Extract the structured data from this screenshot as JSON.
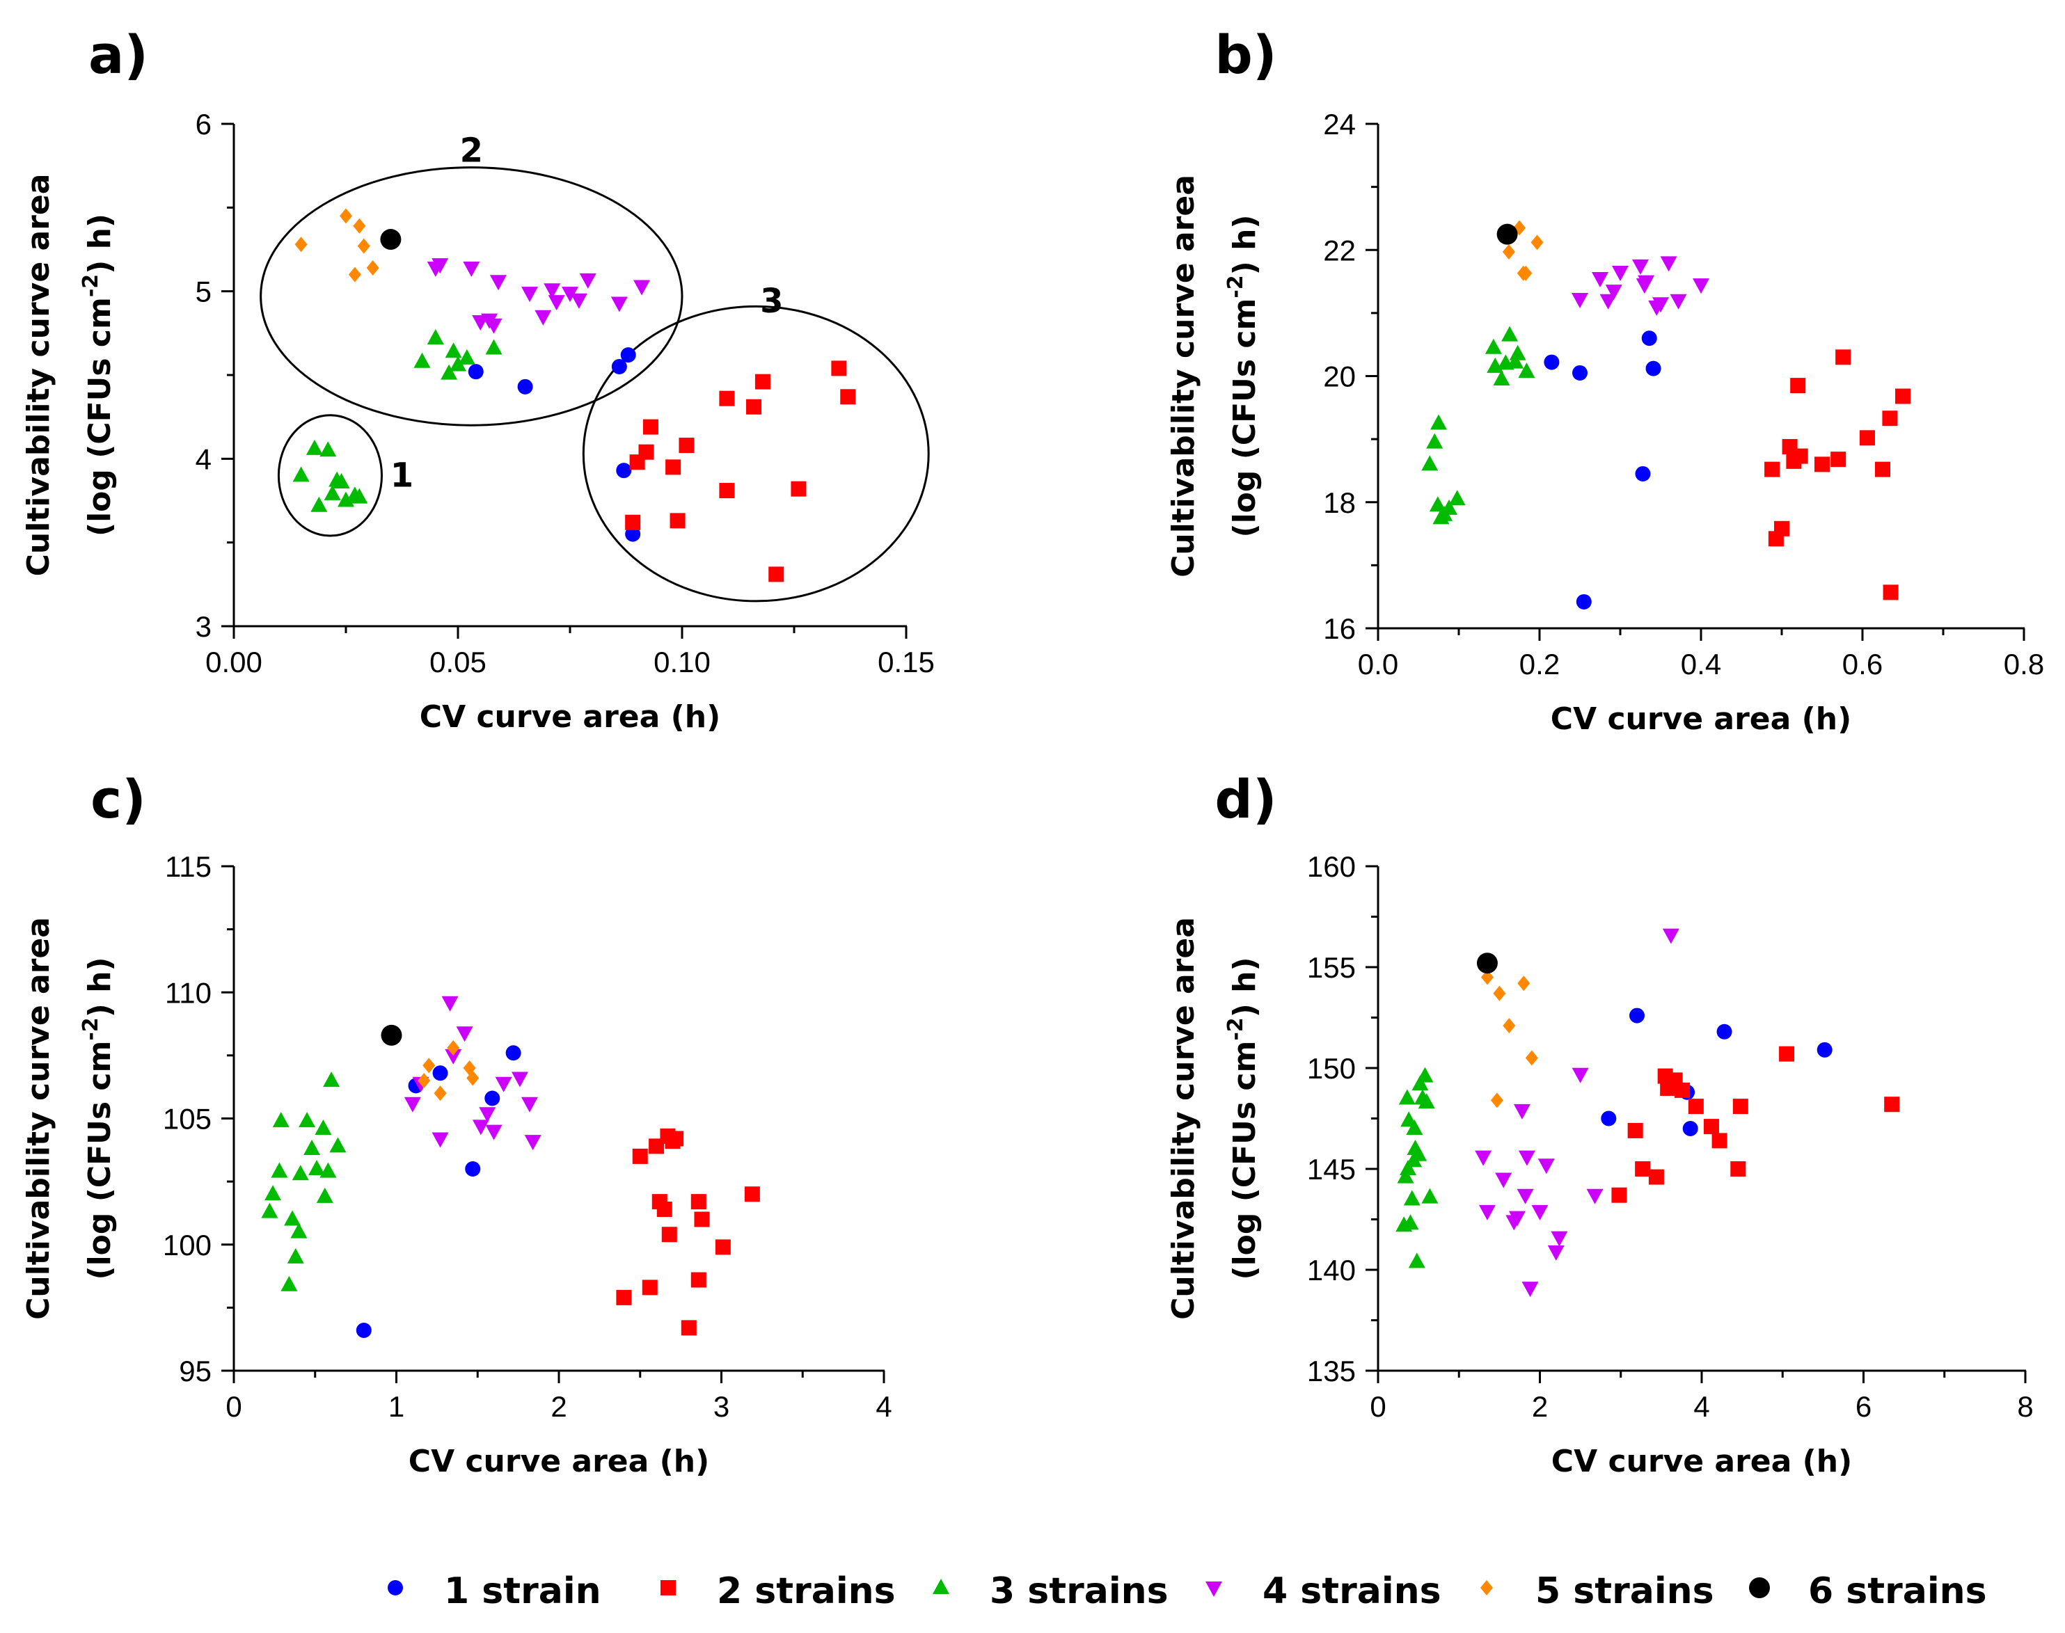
{
  "series_styles": [
    {
      "key": "s1",
      "shape": "circle",
      "color": "#0000ff"
    },
    {
      "key": "s2",
      "shape": "square",
      "color": "#ff0000"
    },
    {
      "key": "s3",
      "shape": "triangle-up",
      "color": "#00bb00"
    },
    {
      "key": "s4",
      "shape": "triangle-down",
      "color": "#cc00ff"
    },
    {
      "key": "s5",
      "shape": "diamond",
      "color": "#ff8800"
    },
    {
      "key": "s6",
      "shape": "circle-large",
      "color": "#000000"
    }
  ],
  "legend": [
    "1 strain",
    "2 strains",
    "3 strains",
    "4 strains",
    "5 strains",
    "6 strains"
  ],
  "chart_data": [
    {
      "panel": "a)",
      "type": "scatter",
      "xlabel": "CV curve area (h)",
      "ylabel_line1": "Cultivability curve area",
      "ylabel_line2_prefix": "(log (CFUs cm",
      "ylabel_line2_sup": "-2",
      "ylabel_line2_suffix": ") h)",
      "xlim": [
        0,
        0.15
      ],
      "ylim": [
        3,
        6
      ],
      "xticks": [
        0,
        0.05,
        0.1,
        0.15
      ],
      "xtick_labels": [
        "0.00",
        "0.05",
        "0.10",
        "0.15"
      ],
      "yticks": [
        3,
        4,
        5,
        6
      ],
      "ytick_labels": [
        "3",
        "4",
        "5",
        "6"
      ],
      "clusters": [
        {
          "label": "1",
          "cx": 0.0215,
          "cy": 3.9,
          "rx": 0.0115,
          "ry": 0.36,
          "label_x": 0.0375,
          "label_y": 3.9
        },
        {
          "label": "2",
          "cx": 0.053,
          "cy": 4.97,
          "rx": 0.047,
          "ry": 0.77,
          "label_x": 0.053,
          "label_y": 5.84
        },
        {
          "label": "3",
          "cx": 0.1165,
          "cy": 4.03,
          "rx": 0.0385,
          "ry": 0.88,
          "label_x": 0.12,
          "label_y": 4.94
        }
      ],
      "series": [
        {
          "name": "1 strain",
          "x": [
            0.054,
            0.065,
            0.086,
            0.088,
            0.087,
            0.089
          ],
          "y": [
            4.52,
            4.43,
            4.55,
            4.62,
            3.93,
            3.55
          ]
        },
        {
          "name": "2 strains",
          "x": [
            0.089,
            0.09,
            0.092,
            0.093,
            0.098,
            0.099,
            0.101,
            0.11,
            0.11,
            0.116,
            0.118,
            0.121,
            0.126,
            0.135,
            0.137
          ],
          "y": [
            3.62,
            3.98,
            4.04,
            4.19,
            3.95,
            3.63,
            4.08,
            4.36,
            3.81,
            4.31,
            4.46,
            3.31,
            3.82,
            4.54,
            4.37
          ]
        },
        {
          "name": "3 strains",
          "x": [
            0.015,
            0.018,
            0.019,
            0.021,
            0.022,
            0.023,
            0.024,
            0.025,
            0.027,
            0.028,
            0.042,
            0.045,
            0.048,
            0.049,
            0.05,
            0.052,
            0.058
          ],
          "y": [
            3.9,
            4.06,
            3.72,
            4.05,
            3.79,
            3.87,
            3.86,
            3.75,
            3.78,
            3.77,
            4.58,
            4.72,
            4.51,
            4.64,
            4.56,
            4.6,
            4.66
          ]
        },
        {
          "name": "4 strains",
          "x": [
            0.045,
            0.046,
            0.053,
            0.055,
            0.057,
            0.058,
            0.059,
            0.066,
            0.069,
            0.071,
            0.072,
            0.075,
            0.077,
            0.079,
            0.086,
            0.091
          ],
          "y": [
            5.14,
            5.16,
            5.14,
            4.82,
            4.83,
            4.8,
            5.06,
            4.99,
            4.85,
            5.01,
            4.94,
            4.99,
            4.95,
            5.07,
            4.93,
            5.03
          ]
        },
        {
          "name": "5 strains",
          "x": [
            0.015,
            0.025,
            0.027,
            0.028,
            0.029,
            0.031
          ],
          "y": [
            5.28,
            5.45,
            5.1,
            5.39,
            5.27,
            5.14
          ]
        },
        {
          "name": "6 strains",
          "x": [
            0.035
          ],
          "y": [
            5.31
          ]
        }
      ]
    },
    {
      "panel": "b)",
      "type": "scatter",
      "xlabel": "CV curve area (h)",
      "ylabel_line1": "Cultivability curve area",
      "ylabel_line2_prefix": "(log (CFUs cm",
      "ylabel_line2_sup": "-2",
      "ylabel_line2_suffix": ") h)",
      "xlim": [
        0,
        0.8
      ],
      "ylim": [
        16,
        24
      ],
      "xticks": [
        0,
        0.2,
        0.4,
        0.6,
        0.8
      ],
      "xtick_labels": [
        "0.0",
        "0.2",
        "0.4",
        "0.6",
        "0.8"
      ],
      "yticks": [
        16,
        18,
        20,
        22,
        24
      ],
      "ytick_labels": [
        "16",
        "18",
        "20",
        "22",
        "24"
      ],
      "clusters": [],
      "series": [
        {
          "name": "1 strain",
          "x": [
            0.215,
            0.25,
            0.255,
            0.328,
            0.336,
            0.341
          ],
          "y": [
            20.22,
            20.05,
            16.42,
            18.45,
            20.6,
            20.12
          ]
        },
        {
          "name": "2 strains",
          "x": [
            0.488,
            0.493,
            0.5,
            0.51,
            0.515,
            0.52,
            0.523,
            0.55,
            0.57,
            0.576,
            0.606,
            0.625,
            0.634,
            0.635,
            0.65
          ],
          "y": [
            18.52,
            17.42,
            17.58,
            18.88,
            18.65,
            19.85,
            18.73,
            18.6,
            18.68,
            20.3,
            19.02,
            18.52,
            19.33,
            16.57,
            19.68
          ]
        },
        {
          "name": "3 strains",
          "x": [
            0.064,
            0.07,
            0.074,
            0.075,
            0.078,
            0.082,
            0.088,
            0.098,
            0.143,
            0.145,
            0.153,
            0.158,
            0.163,
            0.17,
            0.173,
            0.184
          ],
          "y": [
            18.6,
            18.95,
            17.95,
            19.25,
            17.75,
            17.8,
            17.9,
            18.05,
            20.45,
            20.15,
            19.95,
            20.2,
            20.65,
            20.22,
            20.35,
            20.07
          ]
        },
        {
          "name": "4 strains",
          "x": [
            0.25,
            0.275,
            0.285,
            0.292,
            0.3,
            0.325,
            0.33,
            0.332,
            0.345,
            0.35,
            0.36,
            0.372,
            0.4
          ],
          "y": [
            21.22,
            21.55,
            21.2,
            21.35,
            21.65,
            21.75,
            21.45,
            21.5,
            21.1,
            21.15,
            21.8,
            21.2,
            21.45
          ]
        },
        {
          "name": "5 strains",
          "x": [
            0.162,
            0.175,
            0.18,
            0.183,
            0.197
          ],
          "y": [
            21.97,
            22.35,
            21.63,
            21.63,
            22.12
          ]
        },
        {
          "name": "6 strains",
          "x": [
            0.16
          ],
          "y": [
            22.25
          ]
        }
      ]
    },
    {
      "panel": "c)",
      "type": "scatter",
      "xlabel": "CV curve area (h)",
      "ylabel_line1": "Cultivability curve area",
      "ylabel_line2_prefix": "(log (CFUs cm",
      "ylabel_line2_sup": "-2",
      "ylabel_line2_suffix": ") h)",
      "xlim": [
        0,
        4
      ],
      "ylim": [
        95,
        115
      ],
      "xticks": [
        0,
        1,
        2,
        3,
        4
      ],
      "xtick_labels": [
        "0",
        "1",
        "2",
        "3",
        "4"
      ],
      "yticks": [
        95,
        100,
        105,
        110,
        115
      ],
      "ytick_labels": [
        "95",
        "100",
        "105",
        "110",
        "115"
      ],
      "clusters": [],
      "series": [
        {
          "name": "1 strain",
          "x": [
            0.8,
            1.12,
            1.27,
            1.47,
            1.59,
            1.72
          ],
          "y": [
            96.6,
            106.3,
            106.8,
            103,
            105.8,
            107.6
          ]
        },
        {
          "name": "2 strains",
          "x": [
            2.4,
            2.5,
            2.56,
            2.6,
            2.62,
            2.65,
            2.67,
            2.68,
            2.7,
            2.72,
            2.8,
            2.86,
            2.86,
            2.88,
            3.01,
            3.19
          ],
          "y": [
            97.9,
            103.5,
            98.3,
            103.9,
            101.7,
            101.4,
            104.3,
            100.4,
            104.1,
            104.2,
            96.7,
            101.7,
            98.6,
            101,
            99.9,
            102
          ]
        },
        {
          "name": "3 strains",
          "x": [
            0.22,
            0.24,
            0.28,
            0.29,
            0.34,
            0.36,
            0.38,
            0.4,
            0.41,
            0.45,
            0.48,
            0.51,
            0.55,
            0.56,
            0.58,
            0.6,
            0.64
          ],
          "y": [
            101.3,
            102,
            102.9,
            104.9,
            98.4,
            101,
            99.5,
            100.5,
            102.8,
            104.9,
            103.8,
            103,
            104.6,
            101.9,
            102.9,
            106.5,
            103.9
          ]
        },
        {
          "name": "4 strains",
          "x": [
            1.1,
            1.15,
            1.27,
            1.33,
            1.35,
            1.42,
            1.52,
            1.56,
            1.6,
            1.66,
            1.76,
            1.82,
            1.84
          ],
          "y": [
            105.6,
            106.4,
            104.2,
            109.6,
            107.5,
            108.4,
            104.7,
            105.2,
            104.5,
            106.4,
            106.6,
            105.6,
            104.1
          ]
        },
        {
          "name": "5 strains",
          "x": [
            1.17,
            1.2,
            1.27,
            1.35,
            1.45,
            1.47
          ],
          "y": [
            106.5,
            107.1,
            106,
            107.8,
            107,
            106.6
          ]
        },
        {
          "name": "6 strains",
          "x": [
            0.97
          ],
          "y": [
            108.3
          ]
        }
      ]
    },
    {
      "panel": "d)",
      "type": "scatter",
      "xlabel": "CV curve area (h)",
      "ylabel_line1": "Cultivability curve area",
      "ylabel_line2_prefix": "(log (CFUs cm",
      "ylabel_line2_sup": "-2",
      "ylabel_line2_suffix": ") h)",
      "xlim": [
        0,
        8
      ],
      "ylim": [
        135,
        160
      ],
      "xticks": [
        0,
        2,
        4,
        6,
        8
      ],
      "xtick_labels": [
        "0",
        "2",
        "4",
        "6",
        "8"
      ],
      "yticks": [
        135,
        140,
        145,
        150,
        155,
        160
      ],
      "ytick_labels": [
        "135",
        "140",
        "145",
        "150",
        "155",
        "160"
      ],
      "clusters": [],
      "series": [
        {
          "name": "1 strain",
          "x": [
            2.85,
            3.2,
            3.82,
            3.86,
            4.28,
            5.52
          ],
          "y": [
            147.5,
            152.6,
            148.8,
            147,
            151.8,
            150.9
          ]
        },
        {
          "name": "2 strains",
          "x": [
            2.98,
            3.18,
            3.27,
            3.44,
            3.55,
            3.58,
            3.67,
            3.76,
            3.93,
            4.12,
            4.22,
            4.45,
            4.48,
            5.05,
            6.35
          ],
          "y": [
            143.7,
            146.9,
            145,
            144.6,
            149.6,
            149,
            149.4,
            148.9,
            148.1,
            147.1,
            146.4,
            145,
            148.1,
            150.7,
            148.2
          ]
        },
        {
          "name": "3 strains",
          "x": [
            0.32,
            0.34,
            0.36,
            0.37,
            0.38,
            0.4,
            0.42,
            0.44,
            0.45,
            0.46,
            0.48,
            0.5,
            0.52,
            0.55,
            0.58,
            0.6,
            0.64
          ],
          "y": [
            142.2,
            144.6,
            148.5,
            145,
            147.4,
            142.3,
            143.5,
            145.4,
            147,
            146,
            140.4,
            145.7,
            149.2,
            148.5,
            149.6,
            148.3,
            143.6
          ]
        },
        {
          "name": "4 strains",
          "x": [
            1.3,
            1.35,
            1.55,
            1.68,
            1.72,
            1.78,
            1.82,
            1.84,
            1.88,
            2.0,
            2.08,
            2.2,
            2.24,
            2.5,
            2.68,
            3.62
          ],
          "y": [
            145.6,
            142.9,
            144.5,
            142.4,
            142.6,
            147.9,
            143.7,
            145.6,
            139.1,
            142.9,
            145.2,
            140.9,
            141.6,
            149.7,
            143.7,
            156.6
          ]
        },
        {
          "name": "5 strains",
          "x": [
            1.35,
            1.47,
            1.5,
            1.62,
            1.8,
            1.9
          ],
          "y": [
            154.5,
            148.4,
            153.7,
            152.1,
            154.2,
            150.5
          ]
        },
        {
          "name": "6 strains",
          "x": [
            1.35
          ],
          "y": [
            155.2
          ]
        }
      ]
    }
  ]
}
